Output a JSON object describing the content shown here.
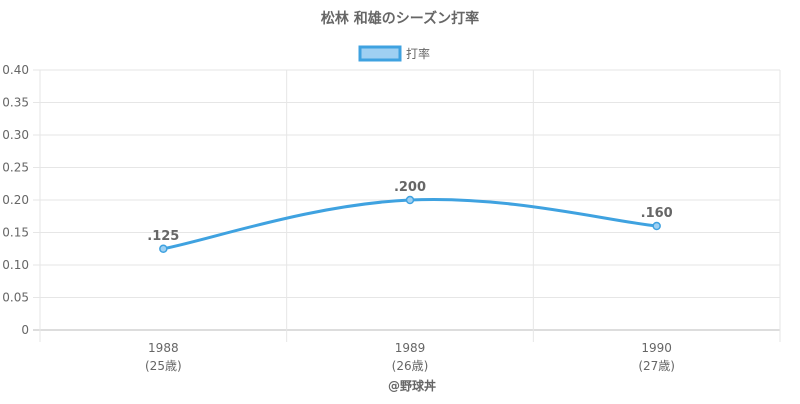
{
  "chart_data": {
    "type": "line",
    "title": "松林 和雄のシーズン打率",
    "legend": {
      "label": "打率",
      "placement": "top-center"
    },
    "categories": [
      "1988",
      "1989",
      "1990"
    ],
    "category_sublabels": [
      "(25歳)",
      "(26歳)",
      "(27歳)"
    ],
    "series": [
      {
        "name": "打率",
        "values": [
          0.125,
          0.2,
          0.16
        ],
        "data_labels": [
          ".125",
          ".200",
          ".160"
        ]
      }
    ],
    "ylim": [
      0,
      0.4
    ],
    "yticks": [
      0,
      0.05,
      0.1,
      0.15,
      0.2,
      0.25,
      0.3,
      0.35,
      0.4
    ],
    "ytick_labels": [
      "0",
      "0.05",
      "0.10",
      "0.15",
      "0.20",
      "0.25",
      "0.30",
      "0.35",
      "0.40"
    ],
    "grid": true,
    "colors": {
      "line": "#3fa2e0",
      "fill": "#9fd0f2",
      "grid": "#e6e6e6",
      "text": "#666666"
    }
  },
  "footer": {
    "credit": "@野球丼"
  }
}
